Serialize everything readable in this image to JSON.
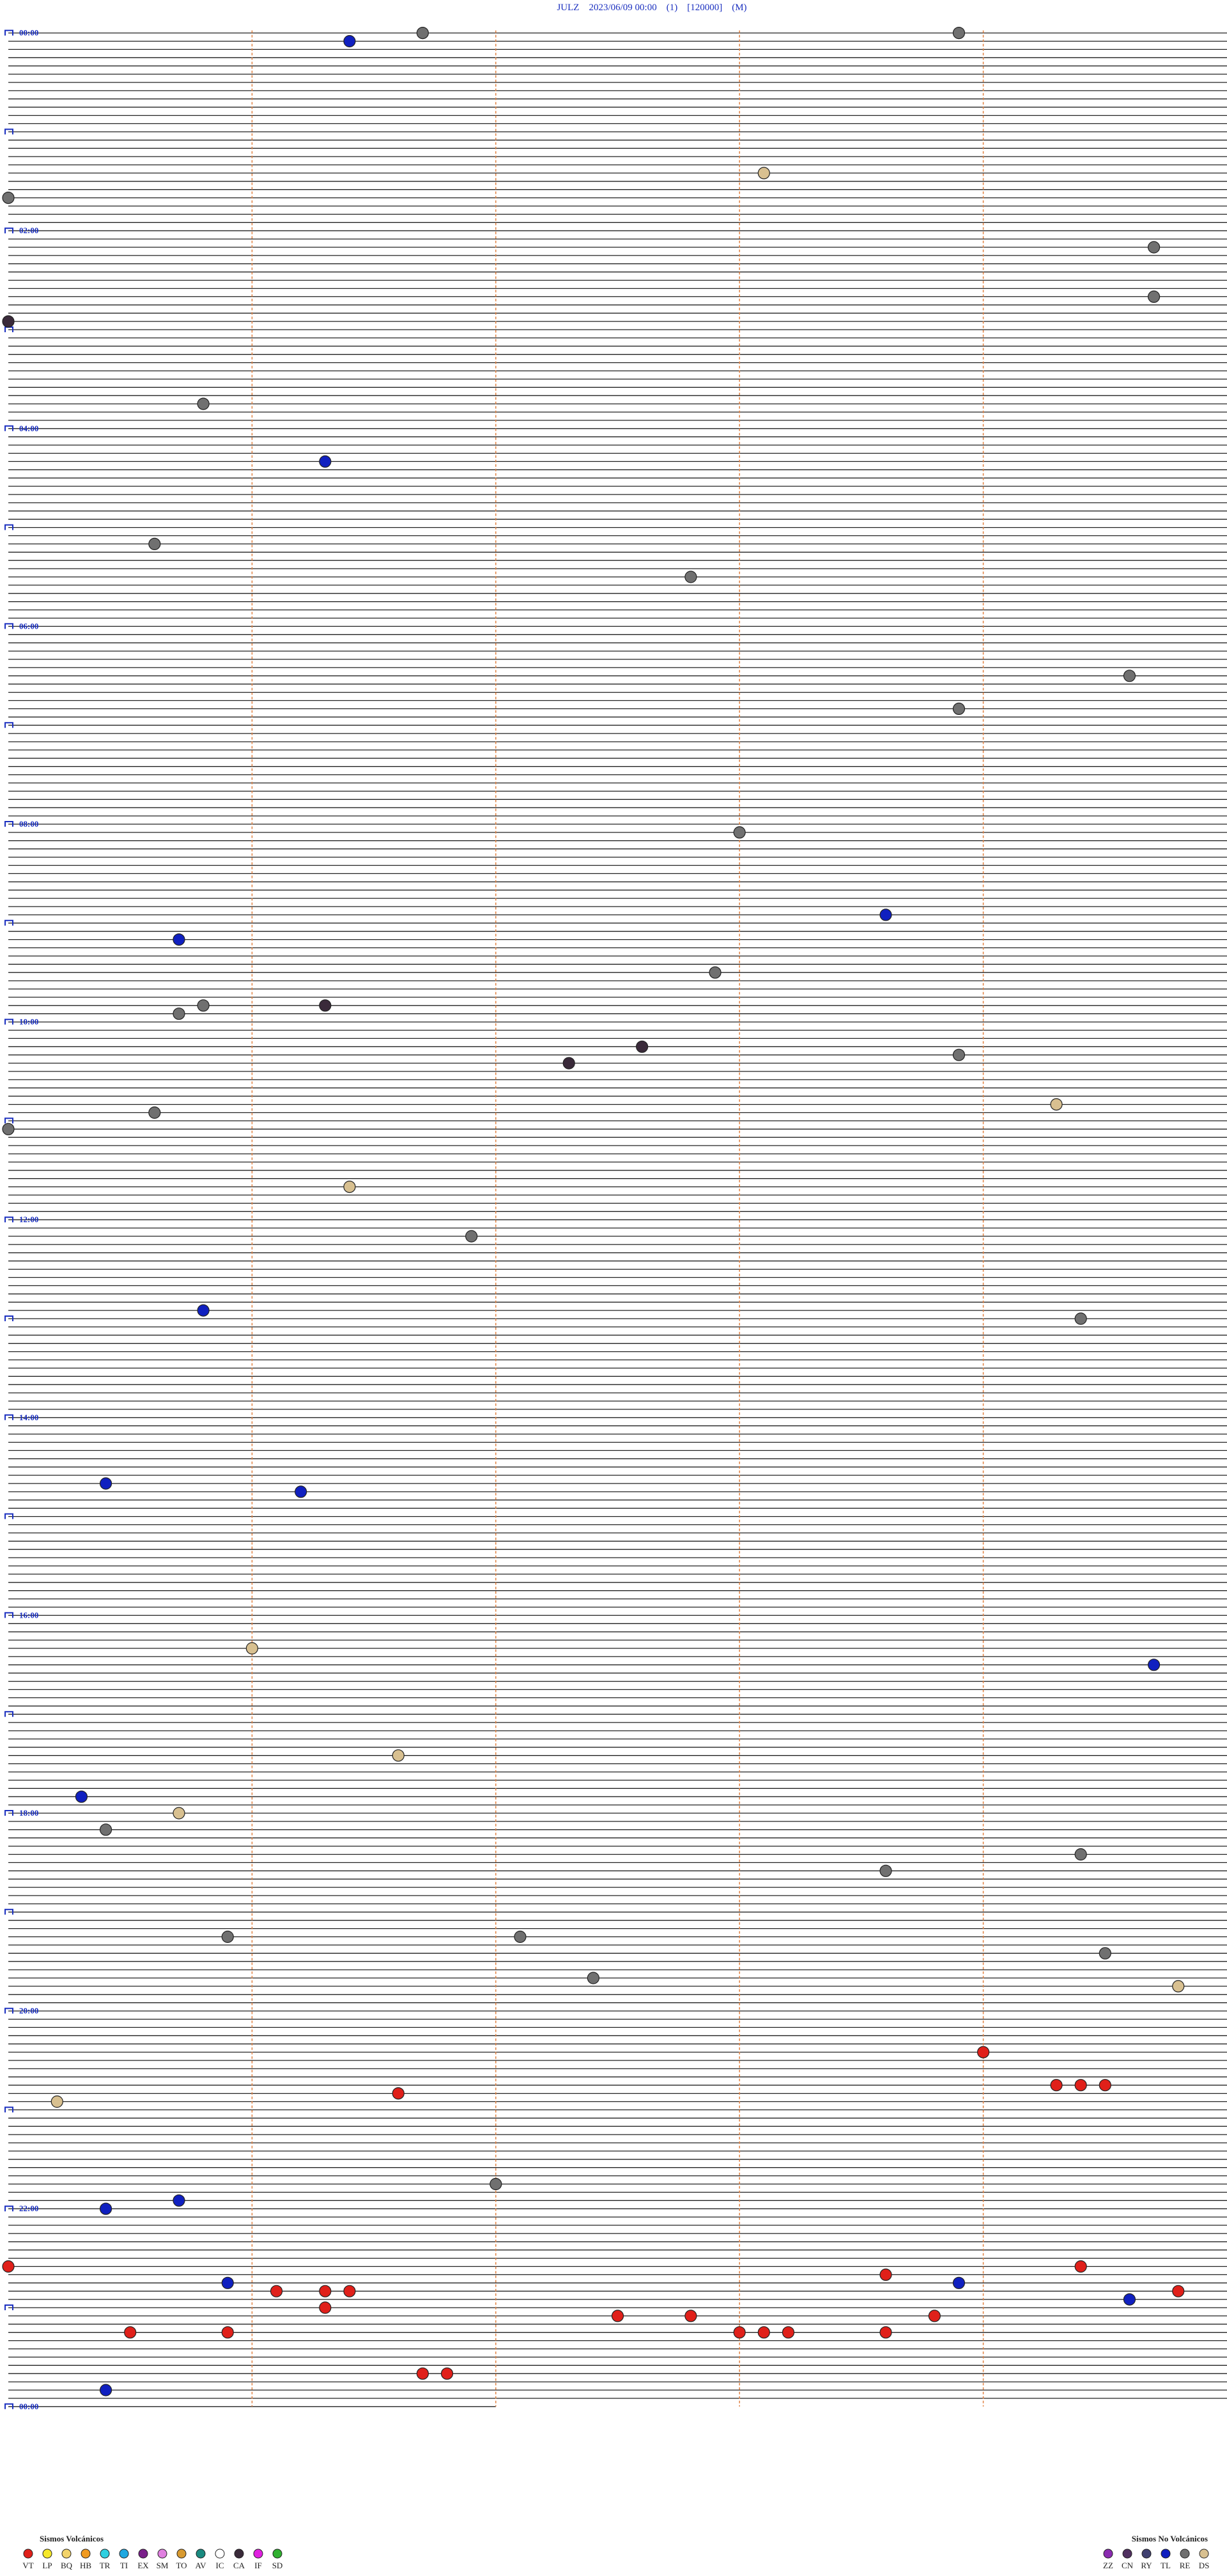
{
  "header": {
    "title": "JULZ    2023/06/09 00:00    (1)    [120000]    (M)"
  },
  "hour_labels": [
    "00:00",
    "02:00",
    "04:00",
    "06:00",
    "08:00",
    "10:00",
    "12:00",
    "14:00",
    "16:00",
    "18:00",
    "20:00",
    "22:00",
    "00:00"
  ],
  "legend": {
    "volcanic": {
      "title": "Sismos Volcánicos",
      "types": [
        {
          "label": "VT",
          "color": "#e0201a",
          "events": [
            1229.0,
            1249.3,
            1249.4,
            1249.5,
            1251.6,
            1355.0,
            1363.6,
            1359.4,
            1371.1,
            1371.3,
            1371.4,
            1374.8,
            1381.3,
            1387.5,
            1387.8,
            1388.8,
            1395.5,
            1395.9,
            1398.0,
            1398.1,
            1398.2,
            1398.6,
            1421.7,
            1421.8
          ]
        },
        {
          "label": "LP",
          "color": "#f5e82a",
          "events": []
        },
        {
          "label": "BQ",
          "color": "#f2d36a",
          "events": []
        },
        {
          "label": "HB",
          "color": "#f09a20",
          "events": []
        },
        {
          "label": "TR",
          "color": "#30d0e0",
          "events": []
        },
        {
          "label": "TI",
          "color": "#20a8e0",
          "events": []
        },
        {
          "label": "EX",
          "color": "#7a1f8a",
          "events": []
        },
        {
          "label": "SM",
          "color": "#e080e0",
          "events": []
        },
        {
          "label": "TO",
          "color": "#d89a30",
          "events": []
        },
        {
          "label": "AV",
          "color": "#1a8a80",
          "events": []
        },
        {
          "label": "IC",
          "color": "#ffffff",
          "events": []
        },
        {
          "label": "CA",
          "color": "#3a2a3a",
          "events": [
            175.0,
            591.3,
            617.6,
            627.3
          ]
        },
        {
          "label": "IF",
          "color": "#e020e0",
          "events": []
        },
        {
          "label": "SD",
          "color": "#30b030",
          "events": []
        }
      ]
    },
    "non_volcanic": {
      "title": "Sismos No Volcánicos",
      "types": [
        {
          "label": "ZZ",
          "color": "#8a2bb0",
          "events": []
        },
        {
          "label": "CN",
          "color": "#503060",
          "events": []
        },
        {
          "label": "RY",
          "color": "#404070",
          "events": []
        },
        {
          "label": "TL",
          "color": "#1020c0",
          "events": [
            6.4,
            261.3,
            538.6,
            550.7,
            775.8,
            880.4,
            886.2,
            994.7,
            1070.3,
            1315.7,
            1320.4,
            1365.9,
            1368.9,
            1379.6,
            1430.4
          ]
        },
        {
          "label": "RE",
          "color": "#707070",
          "events": [
            1.7,
            3.9,
            100.0,
            134.7,
            164.7,
            225.8,
            310.6,
            332.8,
            394.6,
            413.9,
            488.0,
            572.9,
            590.8,
            595.7,
            623.9,
            655.6,
            665.0,
            731.9,
            784.4,
            1090.4,
            1109.4,
            1118.6,
            1155.9,
            1157.1,
            1169.5,
            1182.4,
            1307.0
          ]
        },
        {
          "label": "DS",
          "color": "#d8c090",
          "events": [
            88.1,
            654.3,
            701.4,
            981.0,
            1046.6,
            1080.7,
            1189.8,
            1255.2
          ]
        }
      ]
    }
  }
}
